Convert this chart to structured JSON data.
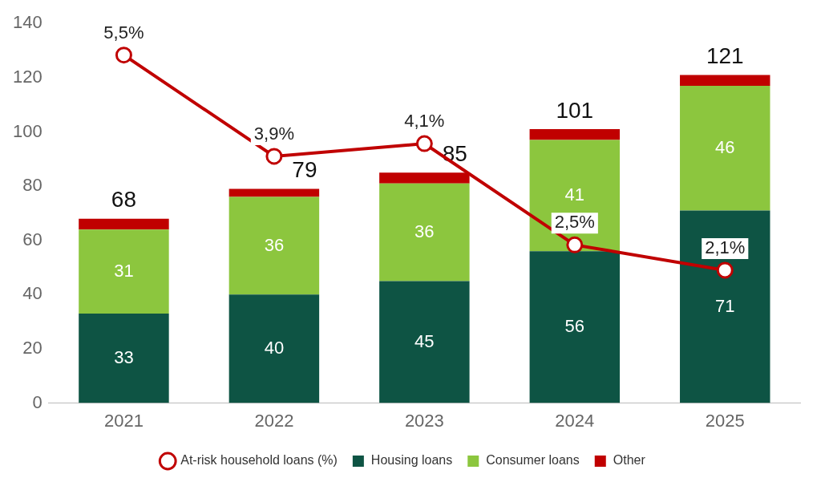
{
  "chart_data": {
    "type": "bar",
    "stacked": true,
    "categories": [
      "2021",
      "2022",
      "2023",
      "2024",
      "2025"
    ],
    "series": [
      {
        "name": "Housing loans",
        "color": "#0e5444",
        "values": [
          33,
          40,
          45,
          56,
          71
        ],
        "value_labels": [
          "33",
          "40",
          "45",
          "56",
          "71"
        ]
      },
      {
        "name": "Consumer loans",
        "color": "#8cc63e",
        "values": [
          31,
          36,
          36,
          41,
          46
        ],
        "value_labels": [
          "31",
          "36",
          "36",
          "41",
          "46"
        ]
      },
      {
        "name": "Other",
        "color": "#c00000",
        "values": [
          4,
          3,
          4,
          4,
          4
        ]
      },
      {
        "name": "At-risk household loans (%)",
        "type": "line",
        "axis": "y2",
        "color": "#c00000",
        "values": [
          5.5,
          3.9,
          4.1,
          2.5,
          2.1
        ],
        "value_labels": [
          "5,5%",
          "3,9%",
          "4,1%",
          "2,5%",
          "2,1%"
        ]
      }
    ],
    "totals": [
      "68",
      "79",
      "85",
      "101",
      "121"
    ],
    "ylim": [
      0,
      140
    ],
    "yticks": [
      0,
      20,
      40,
      60,
      80,
      100,
      120,
      140
    ],
    "grid": false,
    "legend": "bottom",
    "marker": "circle",
    "line_style": "solid"
  }
}
